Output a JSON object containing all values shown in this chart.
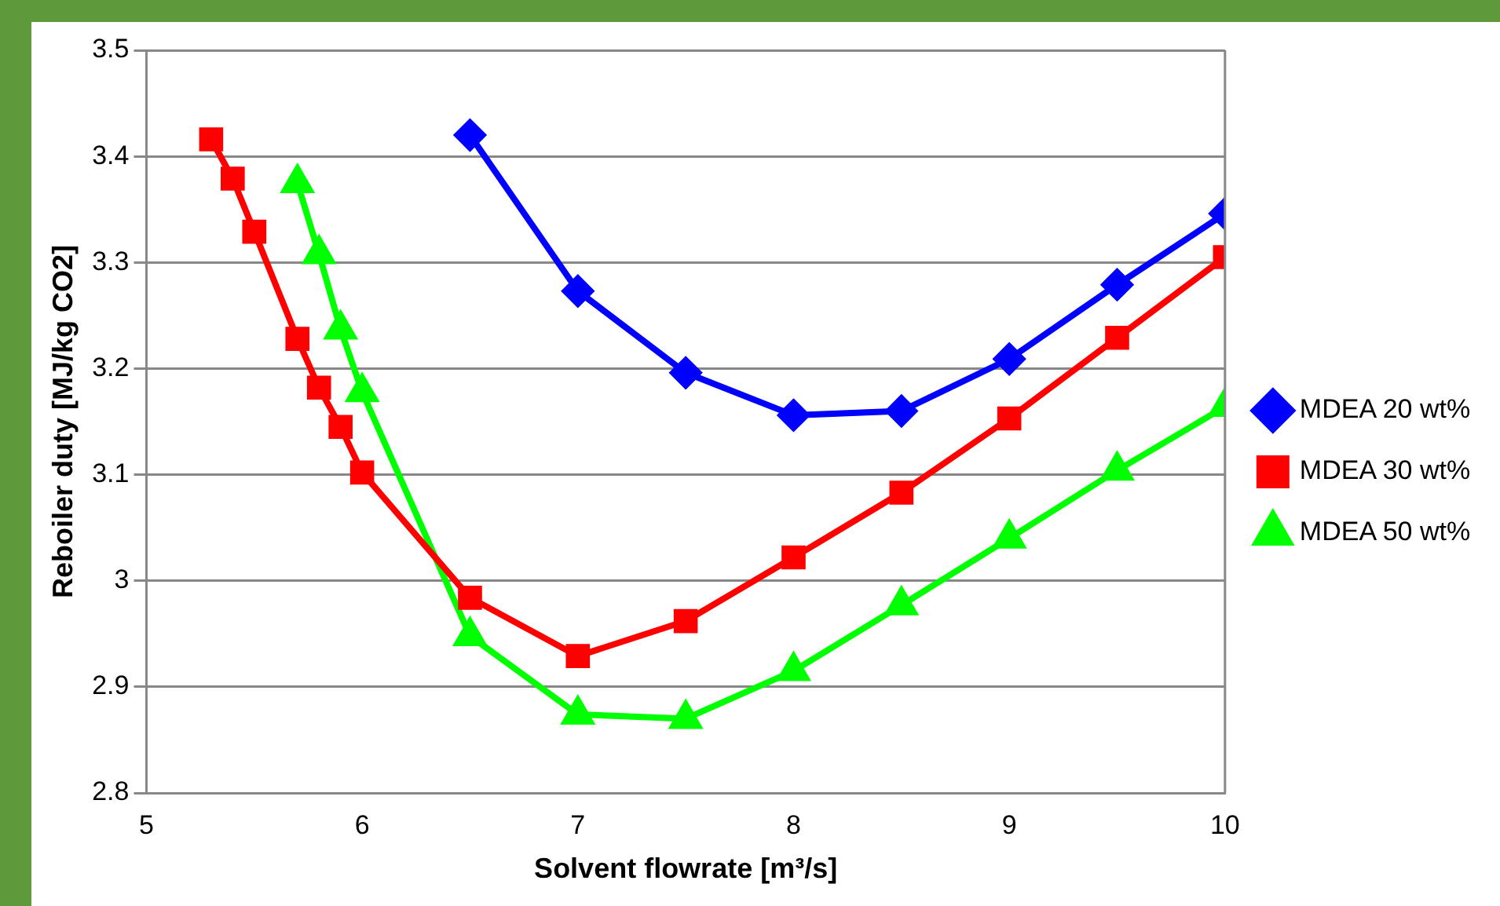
{
  "chart_data": {
    "type": "line",
    "xlabel": "Solvent flowrate [m³/s]",
    "ylabel": "Reboiler duty [MJ/kg CO2]",
    "xlim": [
      5,
      10
    ],
    "xticks": [
      5,
      6,
      7,
      8,
      9,
      10
    ],
    "ylim": [
      2.8,
      3.5
    ],
    "yticks": [
      2.8,
      2.9,
      3,
      3.1,
      3.2,
      3.3,
      3.4,
      3.5
    ],
    "grid": "y",
    "legend": "right",
    "series": [
      {
        "name": "MDEA 20 wt%",
        "color": "#0000ff",
        "marker": "diamond",
        "x": [
          6.5,
          7,
          7.5,
          8,
          8.5,
          9,
          9.5,
          10
        ],
        "values": [
          3.42,
          3.273,
          3.196,
          3.156,
          3.16,
          3.209,
          3.279,
          3.346
        ]
      },
      {
        "name": "MDEA 30 wt%",
        "color": "#ff0000",
        "marker": "square",
        "x": [
          5.3,
          5.4,
          5.5,
          5.7,
          5.8,
          5.9,
          6,
          6.5,
          7,
          7.5,
          8,
          8.5,
          9,
          9.5,
          10
        ],
        "values": [
          3.416,
          3.379,
          3.329,
          3.228,
          3.182,
          3.145,
          3.102,
          2.984,
          2.929,
          2.962,
          3.022,
          3.083,
          3.153,
          3.229,
          3.305
        ]
      },
      {
        "name": "MDEA 50 wt%",
        "color": "#00ff00",
        "marker": "triangle",
        "x": [
          5.7,
          5.8,
          5.9,
          6,
          6.5,
          7,
          7.5,
          8,
          8.5,
          9,
          9.5,
          10
        ],
        "values": [
          3.375,
          3.308,
          3.237,
          3.178,
          2.948,
          2.874,
          2.87,
          2.915,
          2.977,
          3.04,
          3.104,
          3.164
        ]
      }
    ]
  }
}
